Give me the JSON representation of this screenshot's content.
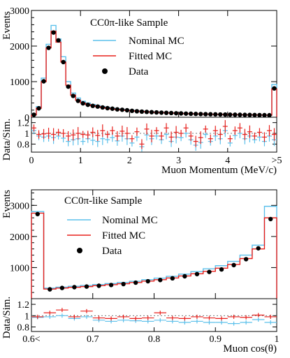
{
  "colors": {
    "nominal": "#5bc0eb",
    "fitted": "#e8201c",
    "data": "#000000"
  },
  "chart_data": [
    {
      "type": "line",
      "title": "CC0π-like Sample",
      "xlabel": "Muon Momentum (MeV/c)",
      "ylabel": "Events",
      "ratio_ylabel": "Data/Sim.",
      "xlim": [
        0,
        5
      ],
      "ylim": [
        0,
        3000
      ],
      "ratio_ylim": [
        0.65,
        1.3
      ],
      "xticks": [
        "0",
        "1",
        "2",
        "3",
        "4",
        ">5"
      ],
      "yticks": [
        "0",
        "1000",
        "2000",
        "3000"
      ],
      "ratio_yticks": [
        "0.8",
        "1",
        "1.2"
      ],
      "legend": [
        "Nominal MC",
        "Fitted MC",
        "Data"
      ],
      "legend_position": "top-right",
      "bin_edges": [
        0,
        0.1,
        0.2,
        0.3,
        0.4,
        0.5,
        0.6,
        0.7,
        0.8,
        0.9,
        1.0,
        1.1,
        1.2,
        1.3,
        1.4,
        1.5,
        1.6,
        1.7,
        1.8,
        1.9,
        2.0,
        2.1,
        2.2,
        2.3,
        2.4,
        2.5,
        2.6,
        2.7,
        2.8,
        2.9,
        3.0,
        3.1,
        3.2,
        3.3,
        3.4,
        3.5,
        3.6,
        3.7,
        3.8,
        3.9,
        4.0,
        4.1,
        4.2,
        4.3,
        4.4,
        4.5,
        4.6,
        4.7,
        4.8,
        4.9,
        5.0
      ],
      "series": [
        {
          "name": "Nominal MC",
          "values": [
            75,
            300,
            1100,
            2050,
            2580,
            2200,
            1700,
            1000,
            680,
            540,
            450,
            400,
            360,
            330,
            300,
            280,
            255,
            235,
            220,
            205,
            190,
            180,
            170,
            160,
            150,
            142,
            135,
            128,
            122,
            115,
            110,
            105,
            100,
            95,
            92,
            88,
            85,
            82,
            78,
            75,
            72,
            70,
            68,
            66,
            64,
            62,
            60,
            58,
            56,
            920
          ]
        },
        {
          "name": "Fitted MC",
          "values": [
            65,
            255,
            1000,
            1950,
            2420,
            2110,
            1550,
            900,
            620,
            480,
            400,
            360,
            325,
            300,
            275,
            255,
            235,
            218,
            205,
            192,
            180,
            170,
            161,
            152,
            144,
            137,
            130,
            124,
            118,
            112,
            107,
            102,
            98,
            94,
            91,
            88,
            85,
            82,
            79,
            76,
            74,
            72,
            70,
            68,
            66,
            64,
            62,
            60,
            58,
            800
          ]
        },
        {
          "name": "Data",
          "values": [
            70,
            250,
            1010,
            1950,
            2380,
            2160,
            1550,
            860,
            600,
            460,
            390,
            350,
            320,
            300,
            275,
            255,
            240,
            222,
            210,
            196,
            180,
            168,
            158,
            150,
            142,
            136,
            129,
            124,
            118,
            112,
            108,
            102,
            98,
            94,
            90,
            87,
            84,
            81,
            78,
            75,
            73,
            71,
            69,
            67,
            65,
            63,
            61,
            59,
            57,
            810
          ]
        }
      ],
      "ratio_nominal": [
        1.05,
        0.95,
        0.93,
        0.95,
        0.92,
        0.95,
        0.91,
        0.85,
        0.88,
        0.9,
        0.85,
        0.9,
        0.87,
        0.85,
        0.9,
        0.88,
        0.92,
        0.86,
        0.95,
        0.9,
        0.82,
        0.93,
        0.75,
        0.97,
        0.9,
        0.95,
        0.88,
        0.98,
        0.85,
        0.93,
        0.92,
        1.0,
        0.88,
        0.78,
        0.83,
        0.98,
        0.85,
        0.95,
        0.9,
        1.05,
        0.82,
        0.96,
        1.0,
        0.9,
        0.95,
        0.88,
        0.93,
        0.85,
        0.95,
        0.88
      ],
      "ratio_fitted": [
        1.1,
        0.98,
        0.99,
        1.0,
        0.98,
        1.02,
        1.0,
        0.95,
        0.97,
        1.0,
        0.98,
        0.97,
        1.02,
        0.96,
        1.05,
        0.98,
        1.05,
        0.95,
        1.04,
        1.0,
        0.9,
        1.03,
        0.8,
        1.08,
        0.95,
        1.05,
        0.95,
        1.1,
        0.93,
        1.02,
        1.0,
        1.1,
        0.95,
        0.85,
        0.92,
        1.08,
        0.9,
        1.05,
        0.98,
        1.13,
        0.9,
        1.05,
        1.1,
        0.98,
        1.03,
        0.95,
        1.02,
        0.93,
        1.05,
        0.98
      ]
    },
    {
      "type": "line",
      "title": "CC0π-like Sample",
      "xlabel": "Muon cos(θ)",
      "ylabel": "Events",
      "ratio_ylabel": "Data/Sim.",
      "xlim": [
        0.6,
        1.0
      ],
      "ylim": [
        0,
        3500
      ],
      "ratio_ylim": [
        0.72,
        1.3
      ],
      "xticks": [
        "0.6<",
        "0.7",
        "0.8",
        "0.9",
        "1"
      ],
      "yticks": [
        "1000",
        "2000",
        "3000"
      ],
      "ratio_yticks": [
        "0.8",
        "1",
        "1.2"
      ],
      "legend": [
        "Nominal MC",
        "Fitted MC",
        "Data"
      ],
      "legend_position": "top-left",
      "bin_edges": [
        0.6,
        0.62,
        0.64,
        0.66,
        0.68,
        0.7,
        0.72,
        0.74,
        0.76,
        0.78,
        0.8,
        0.82,
        0.84,
        0.86,
        0.88,
        0.9,
        0.92,
        0.94,
        0.96,
        0.98,
        1.0
      ],
      "series": [
        {
          "name": "Nominal MC",
          "values": [
            2800,
            340,
            370,
            400,
            425,
            455,
            485,
            520,
            560,
            610,
            660,
            720,
            790,
            870,
            960,
            1060,
            1200,
            1400,
            1720,
            2970
          ]
        },
        {
          "name": "Fitted MC",
          "values": [
            2750,
            310,
            340,
            365,
            390,
            420,
            450,
            480,
            520,
            565,
            610,
            665,
            730,
            800,
            880,
            980,
            1100,
            1290,
            1600,
            2600
          ]
        },
        {
          "name": "Data",
          "values": [
            2720,
            300,
            345,
            370,
            390,
            415,
            440,
            470,
            515,
            560,
            600,
            655,
            720,
            790,
            860,
            940,
            1080,
            1270,
            1620,
            2560
          ]
        }
      ],
      "ratio_nominal": [
        0.97,
        0.98,
        1.0,
        0.95,
        0.98,
        0.92,
        0.9,
        0.92,
        0.91,
        0.9,
        0.92,
        0.9,
        0.88,
        0.9,
        0.88,
        0.88,
        0.86,
        0.88,
        0.93,
        0.88
      ],
      "ratio_fitted": [
        0.98,
        1.05,
        1.1,
        0.98,
        1.08,
        0.96,
        0.95,
        0.98,
        0.95,
        0.96,
        1.05,
        0.96,
        0.95,
        0.98,
        0.96,
        0.95,
        0.98,
        0.97,
        1.01,
        0.98
      ]
    }
  ]
}
